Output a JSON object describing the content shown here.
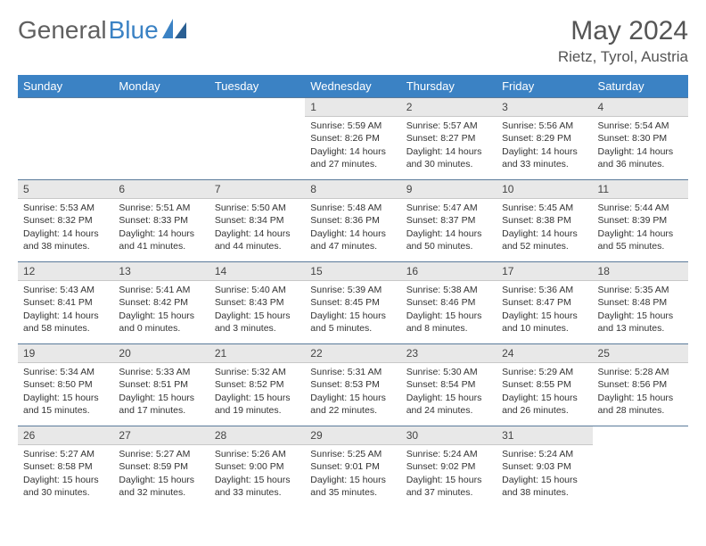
{
  "brand": {
    "part1": "General",
    "part2": "Blue"
  },
  "title": "May 2024",
  "location": "Rietz, Tyrol, Austria",
  "colors": {
    "header_bg": "#3b82c4",
    "header_text": "#ffffff",
    "daynum_bg": "#e8e8e8",
    "rule": "#5a7a9a"
  },
  "weekdays": [
    "Sunday",
    "Monday",
    "Tuesday",
    "Wednesday",
    "Thursday",
    "Friday",
    "Saturday"
  ],
  "weeks": [
    [
      {
        "day": "",
        "sunrise": "",
        "sunset": "",
        "daylight": ""
      },
      {
        "day": "",
        "sunrise": "",
        "sunset": "",
        "daylight": ""
      },
      {
        "day": "",
        "sunrise": "",
        "sunset": "",
        "daylight": ""
      },
      {
        "day": "1",
        "sunrise": "Sunrise: 5:59 AM",
        "sunset": "Sunset: 8:26 PM",
        "daylight": "Daylight: 14 hours and 27 minutes."
      },
      {
        "day": "2",
        "sunrise": "Sunrise: 5:57 AM",
        "sunset": "Sunset: 8:27 PM",
        "daylight": "Daylight: 14 hours and 30 minutes."
      },
      {
        "day": "3",
        "sunrise": "Sunrise: 5:56 AM",
        "sunset": "Sunset: 8:29 PM",
        "daylight": "Daylight: 14 hours and 33 minutes."
      },
      {
        "day": "4",
        "sunrise": "Sunrise: 5:54 AM",
        "sunset": "Sunset: 8:30 PM",
        "daylight": "Daylight: 14 hours and 36 minutes."
      }
    ],
    [
      {
        "day": "5",
        "sunrise": "Sunrise: 5:53 AM",
        "sunset": "Sunset: 8:32 PM",
        "daylight": "Daylight: 14 hours and 38 minutes."
      },
      {
        "day": "6",
        "sunrise": "Sunrise: 5:51 AM",
        "sunset": "Sunset: 8:33 PM",
        "daylight": "Daylight: 14 hours and 41 minutes."
      },
      {
        "day": "7",
        "sunrise": "Sunrise: 5:50 AM",
        "sunset": "Sunset: 8:34 PM",
        "daylight": "Daylight: 14 hours and 44 minutes."
      },
      {
        "day": "8",
        "sunrise": "Sunrise: 5:48 AM",
        "sunset": "Sunset: 8:36 PM",
        "daylight": "Daylight: 14 hours and 47 minutes."
      },
      {
        "day": "9",
        "sunrise": "Sunrise: 5:47 AM",
        "sunset": "Sunset: 8:37 PM",
        "daylight": "Daylight: 14 hours and 50 minutes."
      },
      {
        "day": "10",
        "sunrise": "Sunrise: 5:45 AM",
        "sunset": "Sunset: 8:38 PM",
        "daylight": "Daylight: 14 hours and 52 minutes."
      },
      {
        "day": "11",
        "sunrise": "Sunrise: 5:44 AM",
        "sunset": "Sunset: 8:39 PM",
        "daylight": "Daylight: 14 hours and 55 minutes."
      }
    ],
    [
      {
        "day": "12",
        "sunrise": "Sunrise: 5:43 AM",
        "sunset": "Sunset: 8:41 PM",
        "daylight": "Daylight: 14 hours and 58 minutes."
      },
      {
        "day": "13",
        "sunrise": "Sunrise: 5:41 AM",
        "sunset": "Sunset: 8:42 PM",
        "daylight": "Daylight: 15 hours and 0 minutes."
      },
      {
        "day": "14",
        "sunrise": "Sunrise: 5:40 AM",
        "sunset": "Sunset: 8:43 PM",
        "daylight": "Daylight: 15 hours and 3 minutes."
      },
      {
        "day": "15",
        "sunrise": "Sunrise: 5:39 AM",
        "sunset": "Sunset: 8:45 PM",
        "daylight": "Daylight: 15 hours and 5 minutes."
      },
      {
        "day": "16",
        "sunrise": "Sunrise: 5:38 AM",
        "sunset": "Sunset: 8:46 PM",
        "daylight": "Daylight: 15 hours and 8 minutes."
      },
      {
        "day": "17",
        "sunrise": "Sunrise: 5:36 AM",
        "sunset": "Sunset: 8:47 PM",
        "daylight": "Daylight: 15 hours and 10 minutes."
      },
      {
        "day": "18",
        "sunrise": "Sunrise: 5:35 AM",
        "sunset": "Sunset: 8:48 PM",
        "daylight": "Daylight: 15 hours and 13 minutes."
      }
    ],
    [
      {
        "day": "19",
        "sunrise": "Sunrise: 5:34 AM",
        "sunset": "Sunset: 8:50 PM",
        "daylight": "Daylight: 15 hours and 15 minutes."
      },
      {
        "day": "20",
        "sunrise": "Sunrise: 5:33 AM",
        "sunset": "Sunset: 8:51 PM",
        "daylight": "Daylight: 15 hours and 17 minutes."
      },
      {
        "day": "21",
        "sunrise": "Sunrise: 5:32 AM",
        "sunset": "Sunset: 8:52 PM",
        "daylight": "Daylight: 15 hours and 19 minutes."
      },
      {
        "day": "22",
        "sunrise": "Sunrise: 5:31 AM",
        "sunset": "Sunset: 8:53 PM",
        "daylight": "Daylight: 15 hours and 22 minutes."
      },
      {
        "day": "23",
        "sunrise": "Sunrise: 5:30 AM",
        "sunset": "Sunset: 8:54 PM",
        "daylight": "Daylight: 15 hours and 24 minutes."
      },
      {
        "day": "24",
        "sunrise": "Sunrise: 5:29 AM",
        "sunset": "Sunset: 8:55 PM",
        "daylight": "Daylight: 15 hours and 26 minutes."
      },
      {
        "day": "25",
        "sunrise": "Sunrise: 5:28 AM",
        "sunset": "Sunset: 8:56 PM",
        "daylight": "Daylight: 15 hours and 28 minutes."
      }
    ],
    [
      {
        "day": "26",
        "sunrise": "Sunrise: 5:27 AM",
        "sunset": "Sunset: 8:58 PM",
        "daylight": "Daylight: 15 hours and 30 minutes."
      },
      {
        "day": "27",
        "sunrise": "Sunrise: 5:27 AM",
        "sunset": "Sunset: 8:59 PM",
        "daylight": "Daylight: 15 hours and 32 minutes."
      },
      {
        "day": "28",
        "sunrise": "Sunrise: 5:26 AM",
        "sunset": "Sunset: 9:00 PM",
        "daylight": "Daylight: 15 hours and 33 minutes."
      },
      {
        "day": "29",
        "sunrise": "Sunrise: 5:25 AM",
        "sunset": "Sunset: 9:01 PM",
        "daylight": "Daylight: 15 hours and 35 minutes."
      },
      {
        "day": "30",
        "sunrise": "Sunrise: 5:24 AM",
        "sunset": "Sunset: 9:02 PM",
        "daylight": "Daylight: 15 hours and 37 minutes."
      },
      {
        "day": "31",
        "sunrise": "Sunrise: 5:24 AM",
        "sunset": "Sunset: 9:03 PM",
        "daylight": "Daylight: 15 hours and 38 minutes."
      },
      {
        "day": "",
        "sunrise": "",
        "sunset": "",
        "daylight": ""
      }
    ]
  ]
}
